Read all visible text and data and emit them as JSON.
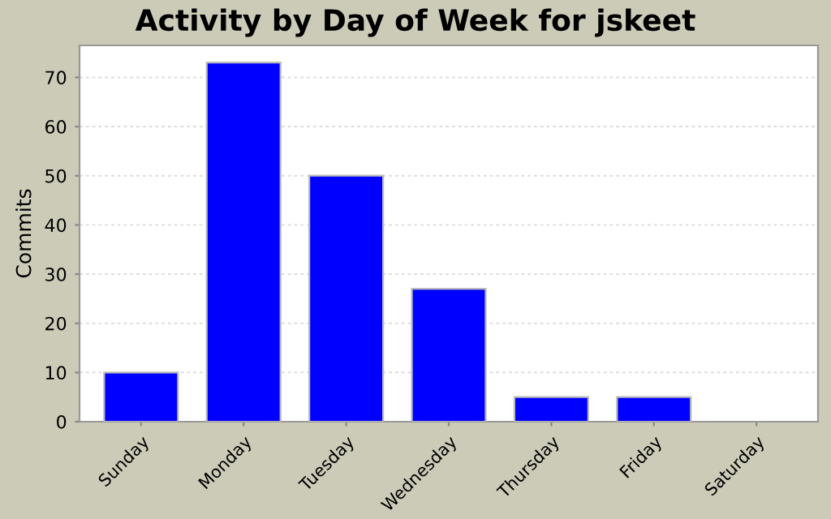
{
  "chart_data": {
    "type": "bar",
    "title": "Activity by Day of Week for jskeet",
    "ylabel": "Commits",
    "categories": [
      "Sunday",
      "Monday",
      "Tuesday",
      "Wednesday",
      "Thursday",
      "Friday",
      "Saturday"
    ],
    "values": [
      10,
      73,
      50,
      27,
      5,
      5,
      0
    ],
    "color": "#0000ff",
    "ylim": [
      0,
      76.5
    ],
    "yticks": [
      0,
      10,
      20,
      30,
      40,
      50,
      60,
      70
    ],
    "grid": "y",
    "legend": false
  }
}
